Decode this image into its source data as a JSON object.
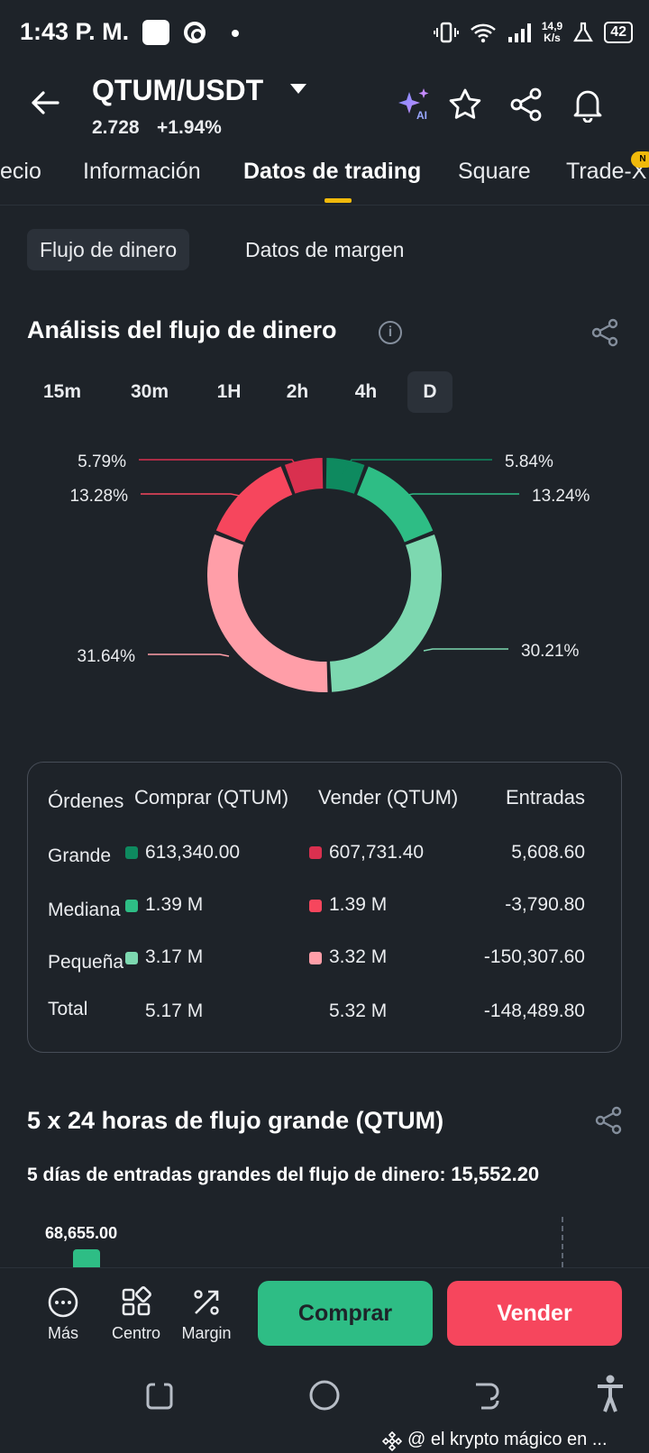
{
  "status_bar": {
    "time": "1:43 P. M.",
    "net_speed_top": "14,9",
    "net_speed_unit": "K/s",
    "battery": "42"
  },
  "header": {
    "pair": "QTUM/USDT",
    "price": "2.728",
    "change": "+1.94%"
  },
  "tabs": [
    {
      "label": "ecio"
    },
    {
      "label": "Información"
    },
    {
      "label": "Datos de trading"
    },
    {
      "label": "Square"
    },
    {
      "label": "Trade-X"
    }
  ],
  "new_badge": "N",
  "segments": [
    {
      "label": "Flujo de dinero"
    },
    {
      "label": "Datos de margen"
    }
  ],
  "money_flow": {
    "title": "Análisis del flujo de dinero",
    "info": "i",
    "timeframes": [
      "15m",
      "30m",
      "1H",
      "2h",
      "4h",
      "D"
    ],
    "active_timeframe": "D"
  },
  "chart_data": {
    "type": "pie",
    "slices": [
      {
        "label": "5.84%",
        "value": 5.84,
        "color": "#0e8a5f"
      },
      {
        "label": "13.24%",
        "value": 13.24,
        "color": "#2ebd85"
      },
      {
        "label": "30.21%",
        "value": 30.21,
        "color": "#7dd8b0"
      },
      {
        "label": "31.64%",
        "value": 31.64,
        "color": "#ff9ea8"
      },
      {
        "label": "13.28%",
        "value": 13.28,
        "color": "#f6465d"
      },
      {
        "label": "5.79%",
        "value": 5.79,
        "color": "#d9304f"
      }
    ]
  },
  "table": {
    "headers": {
      "orders": "Órdenes",
      "buy": "Comprar (QTUM)",
      "sell": "Vender (QTUM)",
      "inflow": "Entradas"
    },
    "rows": [
      {
        "label": "Grande",
        "buy": "613,340.00",
        "sell": "607,731.40",
        "inflow": "5,608.60",
        "buy_color": "#0e8a5f",
        "sell_color": "#d9304f"
      },
      {
        "label": "Mediana",
        "buy": "1.39 M",
        "sell": "1.39 M",
        "inflow": "-3,790.80",
        "buy_color": "#2ebd85",
        "sell_color": "#f6465d"
      },
      {
        "label": "Pequeña",
        "buy": "3.17 M",
        "sell": "3.32 M",
        "inflow": "-150,307.60",
        "buy_color": "#7dd8b0",
        "sell_color": "#ff9ea8"
      },
      {
        "label": "Total",
        "buy": "5.17 M",
        "sell": "5.32 M",
        "inflow": "-148,489.80"
      }
    ]
  },
  "large_flow": {
    "title": "5 x 24 horas de flujo grande (QTUM)",
    "subtitle_label": "5 días de entradas grandes del flujo de dinero:",
    "subtitle_value": "15,552.20",
    "first_bar_value": "68,655.00"
  },
  "bottom_bar": {
    "more": "Más",
    "center": "Centro",
    "margin": "Margin",
    "buy": "Comprar",
    "sell": "Vender"
  },
  "watermark": "@ el krypto mágico en ..."
}
